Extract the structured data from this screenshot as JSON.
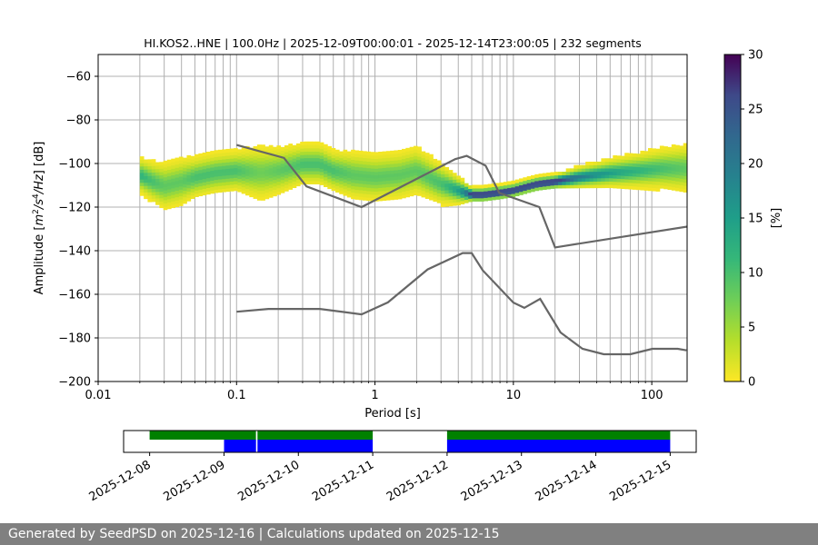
{
  "chart_data": [
    {
      "type": "heatmap",
      "title": "HI.KOS2..HNE | 100.0Hz | 2025-12-09T00:00:01 - 2025-12-14T23:00:05 | 232 segments",
      "xlabel": "Period [s]",
      "ylabel_parts": [
        "Amplitude [",
        "m",
        "2",
        "/",
        "s",
        "4",
        "/",
        "Hz",
        "] [dB]"
      ],
      "xscale": "log",
      "xlim": [
        0.01,
        180
      ],
      "ylim": [
        -200,
        -50
      ],
      "x_ticks": [
        0.01,
        0.1,
        1,
        10,
        100
      ],
      "x_tick_labels": [
        "0.01",
        "0.1",
        "1",
        "10",
        "100"
      ],
      "y_ticks": [
        -200,
        -180,
        -160,
        -140,
        -120,
        -100,
        -80,
        -60
      ],
      "y_tick_labels": [
        "−200",
        "−180",
        "−160",
        "−140",
        "−120",
        "−100",
        "−80",
        "−60"
      ],
      "grid": true,
      "colorbar": {
        "label": "[%]",
        "min": 0,
        "max": 30,
        "ticks": [
          0,
          5,
          10,
          15,
          20,
          25,
          30
        ],
        "tick_labels": [
          "0",
          "5",
          "10",
          "15",
          "20",
          "25",
          "30"
        ],
        "colormap": "viridis_r"
      },
      "ppsd_mode": {
        "period": [
          0.02,
          0.025,
          0.03,
          0.04,
          0.05,
          0.07,
          0.1,
          0.15,
          0.2,
          0.3,
          0.4,
          0.5,
          0.7,
          1.0,
          1.5,
          2.0,
          3.0,
          4.0,
          5.0,
          6.0,
          8.0,
          10,
          13,
          15,
          20,
          30,
          50,
          80,
          120,
          180
        ],
        "amplitude": [
          -106,
          -109,
          -111,
          -109,
          -107,
          -105,
          -104,
          -105,
          -104,
          -101,
          -101,
          -104,
          -106,
          -107,
          -106,
          -104,
          -110,
          -113,
          -115,
          -115,
          -114,
          -113,
          -111,
          -110,
          -109,
          -107,
          -105,
          -104,
          -103,
          -103
        ],
        "spread": [
          5,
          6,
          7,
          7,
          6,
          6,
          6,
          8,
          7,
          6,
          6,
          6,
          7,
          7,
          7,
          7,
          6,
          4,
          2,
          2,
          2,
          2,
          2,
          2,
          2,
          3,
          4,
          5,
          6,
          7
        ]
      },
      "nhnm": {
        "period": [
          0.1,
          0.22,
          0.32,
          0.8,
          3.8,
          4.6,
          6.3,
          7.9,
          15.4,
          20,
          354.8
        ],
        "amplitude": [
          -91.5,
          -97.4,
          -110.5,
          -120,
          -98,
          -96.5,
          -101,
          -113.5,
          -120,
          -138.5,
          -126
        ]
      },
      "nlnm": {
        "period": [
          0.1,
          0.17,
          0.4,
          0.8,
          1.24,
          2.4,
          4.3,
          5.0,
          6.0,
          10.0,
          12.0,
          15.6,
          21.9,
          31.6,
          45.0,
          70.0,
          101.0,
          154.0,
          178
        ],
        "amplitude": [
          -168,
          -166.7,
          -166.7,
          -169.2,
          -163.7,
          -148.6,
          -141.1,
          -141.1,
          -149.0,
          -163.8,
          -166.2,
          -162.1,
          -177.5,
          -185.0,
          -187.5,
          -187.5,
          -185.0,
          -185.0,
          -185.7
        ]
      }
    },
    {
      "type": "timeline",
      "x_tick_labels": [
        "2025-12-08",
        "2025-12-09",
        "2025-12-10",
        "2025-12-11",
        "2025-12-12",
        "2025-12-13",
        "2025-12-14",
        "2025-12-15"
      ],
      "x_start": "2025-12-08",
      "x_end": "2025-12-15",
      "xlim_days": [
        -0.35,
        7.35
      ],
      "bars": [
        {
          "color": "#008000",
          "intervals_days": [
            [
              0.0,
              1.43
            ],
            [
              1.45,
              3.0
            ],
            [
              4.0,
              7.0
            ]
          ]
        },
        {
          "color": "#0000ff",
          "intervals_days": [
            [
              1.0,
              1.43
            ],
            [
              1.45,
              3.0
            ],
            [
              4.0,
              7.0
            ]
          ]
        }
      ]
    }
  ],
  "footer": {
    "text": "Generated by SeedPSD on 2025-12-16 | Calculations updated on 2025-12-15"
  }
}
